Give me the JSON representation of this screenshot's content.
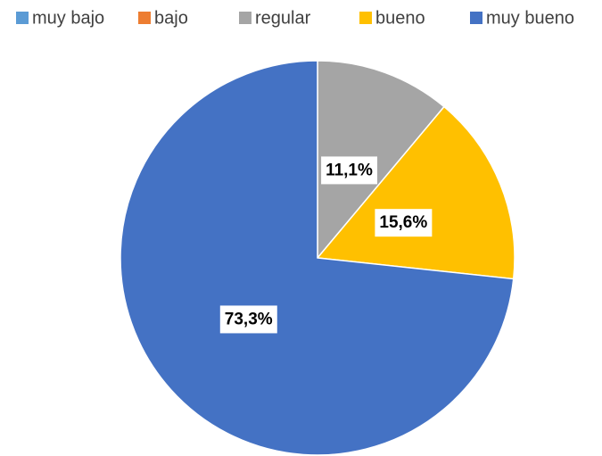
{
  "chart_data": {
    "type": "pie",
    "categories": [
      "muy bajo",
      "bajo",
      "regular",
      "bueno",
      "muy bueno"
    ],
    "values": [
      0,
      0,
      11.1,
      15.6,
      73.3
    ],
    "value_labels": [
      null,
      null,
      "11,1%",
      "15,6%",
      "73,3%"
    ],
    "colors": [
      "#5b9bd5",
      "#ed7d31",
      "#a5a5a5",
      "#ffc000",
      "#4472c4"
    ],
    "legend": "top"
  }
}
